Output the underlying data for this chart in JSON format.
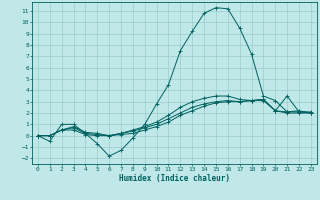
{
  "xlabel": "Humidex (Indice chaleur)",
  "background_color": "#c0e8e8",
  "grid_color": "#98cccc",
  "line_color": "#006060",
  "xlim": [
    -0.5,
    23.5
  ],
  "ylim": [
    -2.5,
    11.8
  ],
  "xticks": [
    0,
    1,
    2,
    3,
    4,
    5,
    6,
    7,
    8,
    9,
    10,
    11,
    12,
    13,
    14,
    15,
    16,
    17,
    18,
    19,
    20,
    21,
    22,
    23
  ],
  "yticks": [
    -2,
    -1,
    0,
    1,
    2,
    3,
    4,
    5,
    6,
    7,
    8,
    9,
    10,
    11
  ],
  "line1_y": [
    0.0,
    -0.5,
    1.0,
    1.0,
    0.2,
    -0.7,
    -1.8,
    -1.3,
    -0.2,
    1.0,
    2.8,
    4.5,
    7.5,
    9.2,
    10.8,
    11.3,
    11.2,
    9.5,
    7.2,
    3.5,
    3.1,
    2.1,
    2.2,
    2.0
  ],
  "line2_y": [
    0.0,
    0.0,
    0.5,
    0.8,
    0.3,
    0.2,
    0.0,
    0.2,
    0.5,
    0.8,
    1.2,
    1.8,
    2.5,
    3.0,
    3.3,
    3.5,
    3.5,
    3.2,
    3.1,
    3.1,
    2.2,
    3.5,
    2.1,
    2.0
  ],
  "line3_y": [
    0.0,
    0.0,
    0.5,
    0.7,
    0.2,
    0.1,
    0.0,
    0.2,
    0.4,
    0.7,
    1.0,
    1.5,
    2.0,
    2.5,
    2.8,
    3.0,
    3.1,
    3.0,
    3.1,
    3.2,
    2.2,
    2.1,
    2.1,
    2.1
  ],
  "line4_y": [
    0.0,
    0.0,
    0.5,
    0.5,
    0.1,
    0.0,
    0.0,
    0.1,
    0.2,
    0.5,
    0.8,
    1.2,
    1.8,
    2.2,
    2.6,
    2.9,
    3.0,
    3.0,
    3.1,
    3.2,
    2.2,
    2.0,
    2.0,
    2.0
  ]
}
